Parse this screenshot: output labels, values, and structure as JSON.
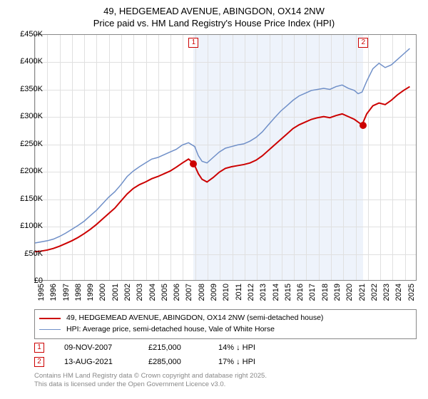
{
  "title_line1": "49, HEDGEMEAD AVENUE, ABINGDON, OX14 2NW",
  "title_line2": "Price paid vs. HM Land Registry's House Price Index (HPI)",
  "chart": {
    "type": "line",
    "background_color": "#ffffff",
    "grid_color": "#e0e0e0",
    "border_color": "#888888",
    "shade_color": "#eef3fb",
    "x_min": 1995,
    "x_max": 2026,
    "x_ticks": [
      1995,
      1996,
      1997,
      1998,
      1999,
      2000,
      2001,
      2002,
      2003,
      2004,
      2005,
      2006,
      2007,
      2008,
      2009,
      2010,
      2011,
      2012,
      2013,
      2014,
      2015,
      2016,
      2017,
      2018,
      2019,
      2020,
      2021,
      2022,
      2023,
      2024,
      2025
    ],
    "y_min": 0,
    "y_max": 450000,
    "y_tick_step": 50000,
    "y_prefix": "£",
    "y_suffix": "K",
    "y_divisor": 1000,
    "marker_box_border": "#cc0000",
    "marker_box_text_color": "#cc0000",
    "series": [
      {
        "name": "price_paid",
        "label": "49, HEDGEMEAD AVENUE, ABINGDON, OX14 2NW (semi-detached house)",
        "color": "#cc0000",
        "line_width": 2,
        "data": [
          [
            1995.0,
            52000
          ],
          [
            1995.5,
            53000
          ],
          [
            1996.0,
            55000
          ],
          [
            1996.5,
            58000
          ],
          [
            1997.0,
            62000
          ],
          [
            1997.5,
            67000
          ],
          [
            1998.0,
            72000
          ],
          [
            1998.5,
            78000
          ],
          [
            1999.0,
            85000
          ],
          [
            1999.5,
            93000
          ],
          [
            2000.0,
            102000
          ],
          [
            2000.5,
            112000
          ],
          [
            2001.0,
            122000
          ],
          [
            2001.5,
            132000
          ],
          [
            2002.0,
            145000
          ],
          [
            2002.5,
            158000
          ],
          [
            2003.0,
            168000
          ],
          [
            2003.5,
            175000
          ],
          [
            2004.0,
            180000
          ],
          [
            2004.5,
            186000
          ],
          [
            2005.0,
            190000
          ],
          [
            2005.5,
            195000
          ],
          [
            2006.0,
            200000
          ],
          [
            2006.5,
            207000
          ],
          [
            2007.0,
            215000
          ],
          [
            2007.5,
            222000
          ],
          [
            2007.86,
            215000
          ],
          [
            2008.0,
            210000
          ],
          [
            2008.3,
            195000
          ],
          [
            2008.6,
            185000
          ],
          [
            2009.0,
            180000
          ],
          [
            2009.5,
            188000
          ],
          [
            2010.0,
            198000
          ],
          [
            2010.5,
            205000
          ],
          [
            2011.0,
            208000
          ],
          [
            2011.5,
            210000
          ],
          [
            2012.0,
            212000
          ],
          [
            2012.5,
            215000
          ],
          [
            2013.0,
            220000
          ],
          [
            2013.5,
            228000
          ],
          [
            2014.0,
            238000
          ],
          [
            2014.5,
            248000
          ],
          [
            2015.0,
            258000
          ],
          [
            2015.5,
            268000
          ],
          [
            2016.0,
            278000
          ],
          [
            2016.5,
            285000
          ],
          [
            2017.0,
            290000
          ],
          [
            2017.5,
            295000
          ],
          [
            2018.0,
            298000
          ],
          [
            2018.5,
            300000
          ],
          [
            2019.0,
            298000
          ],
          [
            2019.5,
            302000
          ],
          [
            2020.0,
            305000
          ],
          [
            2020.5,
            300000
          ],
          [
            2021.0,
            295000
          ],
          [
            2021.3,
            290000
          ],
          [
            2021.62,
            285000
          ],
          [
            2022.0,
            305000
          ],
          [
            2022.5,
            320000
          ],
          [
            2023.0,
            325000
          ],
          [
            2023.5,
            322000
          ],
          [
            2024.0,
            330000
          ],
          [
            2024.5,
            340000
          ],
          [
            2025.0,
            348000
          ],
          [
            2025.5,
            355000
          ]
        ]
      },
      {
        "name": "hpi",
        "label": "HPI: Average price, semi-detached house, Vale of White Horse",
        "color": "#6f8fc8",
        "line_width": 1.5,
        "data": [
          [
            1995.0,
            68000
          ],
          [
            1995.5,
            70000
          ],
          [
            1996.0,
            72000
          ],
          [
            1996.5,
            75000
          ],
          [
            1997.0,
            80000
          ],
          [
            1997.5,
            86000
          ],
          [
            1998.0,
            93000
          ],
          [
            1998.5,
            100000
          ],
          [
            1999.0,
            108000
          ],
          [
            1999.5,
            118000
          ],
          [
            2000.0,
            128000
          ],
          [
            2000.5,
            140000
          ],
          [
            2001.0,
            152000
          ],
          [
            2001.5,
            162000
          ],
          [
            2002.0,
            175000
          ],
          [
            2002.5,
            190000
          ],
          [
            2003.0,
            200000
          ],
          [
            2003.5,
            208000
          ],
          [
            2004.0,
            215000
          ],
          [
            2004.5,
            222000
          ],
          [
            2005.0,
            225000
          ],
          [
            2005.5,
            230000
          ],
          [
            2006.0,
            235000
          ],
          [
            2006.5,
            240000
          ],
          [
            2007.0,
            248000
          ],
          [
            2007.5,
            252000
          ],
          [
            2008.0,
            245000
          ],
          [
            2008.3,
            228000
          ],
          [
            2008.6,
            218000
          ],
          [
            2009.0,
            215000
          ],
          [
            2009.5,
            225000
          ],
          [
            2010.0,
            235000
          ],
          [
            2010.5,
            242000
          ],
          [
            2011.0,
            245000
          ],
          [
            2011.5,
            248000
          ],
          [
            2012.0,
            250000
          ],
          [
            2012.5,
            255000
          ],
          [
            2013.0,
            262000
          ],
          [
            2013.5,
            272000
          ],
          [
            2014.0,
            285000
          ],
          [
            2014.5,
            298000
          ],
          [
            2015.0,
            310000
          ],
          [
            2015.5,
            320000
          ],
          [
            2016.0,
            330000
          ],
          [
            2016.5,
            338000
          ],
          [
            2017.0,
            343000
          ],
          [
            2017.5,
            348000
          ],
          [
            2018.0,
            350000
          ],
          [
            2018.5,
            352000
          ],
          [
            2019.0,
            350000
          ],
          [
            2019.5,
            355000
          ],
          [
            2020.0,
            358000
          ],
          [
            2020.5,
            352000
          ],
          [
            2021.0,
            348000
          ],
          [
            2021.3,
            342000
          ],
          [
            2021.62,
            345000
          ],
          [
            2022.0,
            365000
          ],
          [
            2022.5,
            388000
          ],
          [
            2023.0,
            398000
          ],
          [
            2023.5,
            390000
          ],
          [
            2024.0,
            395000
          ],
          [
            2024.5,
            405000
          ],
          [
            2025.0,
            415000
          ],
          [
            2025.5,
            425000
          ]
        ]
      }
    ],
    "sale_markers": [
      {
        "n": "1",
        "x": 2007.86,
        "y": 215000,
        "dot_color": "#cc0000"
      },
      {
        "n": "2",
        "x": 2021.62,
        "y": 285000,
        "dot_color": "#cc0000"
      }
    ],
    "shade_ranges": [
      {
        "from": 2007.86,
        "to": 2021.62
      }
    ]
  },
  "legend": {
    "items": [
      {
        "color": "#cc0000",
        "width": 2,
        "label": "49, HEDGEMEAD AVENUE, ABINGDON, OX14 2NW (semi-detached house)"
      },
      {
        "color": "#6f8fc8",
        "width": 1.5,
        "label": "HPI: Average price, semi-detached house, Vale of White Horse"
      }
    ]
  },
  "sales": [
    {
      "n": "1",
      "date": "09-NOV-2007",
      "price": "£215,000",
      "hpi": "14% ↓ HPI"
    },
    {
      "n": "2",
      "date": "13-AUG-2021",
      "price": "£285,000",
      "hpi": "17% ↓ HPI"
    }
  ],
  "footer_line1": "Contains HM Land Registry data © Crown copyright and database right 2025.",
  "footer_line2": "This data is licensed under the Open Government Licence v3.0."
}
